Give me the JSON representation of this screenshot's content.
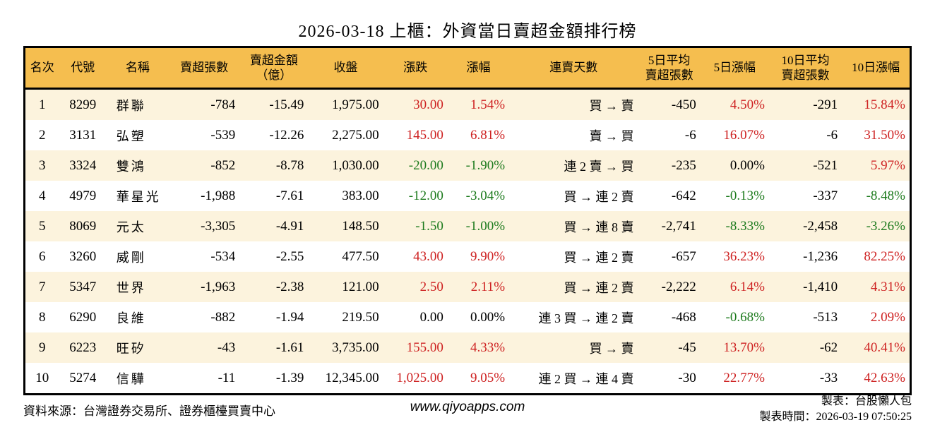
{
  "title": "2026-03-18 上櫃：外資當日賣超金額排行榜",
  "colors": {
    "header_bg": "#F5BE4F",
    "alt_row_bg": "#FCF3DD",
    "up_red": "#CE2222",
    "down_green": "#1E7B1E",
    "border": "#000000"
  },
  "table": {
    "headers": [
      "名次",
      "代號",
      "名稱",
      "賣超張數",
      "賣超金額\n（億）",
      "收盤",
      "漲跌",
      "漲幅",
      "連賣天數",
      "5日平均\n賣超張數",
      "5日漲幅",
      "10日平均\n賣超張數",
      "10日漲幅"
    ],
    "rows": [
      {
        "rank": "1",
        "code": "8299",
        "name": "群聯",
        "lots": "-784",
        "amount": "-15.49",
        "close": "1,975.00",
        "change": "30.00",
        "change_color": "red",
        "change_pct": "1.54%",
        "change_pct_color": "red",
        "streak": "買 → 賣",
        "avg5": "-450",
        "pct5": "4.50%",
        "pct5_color": "red",
        "avg10": "-291",
        "pct10": "15.84%",
        "pct10_color": "red"
      },
      {
        "rank": "2",
        "code": "3131",
        "name": "弘塑",
        "lots": "-539",
        "amount": "-12.26",
        "close": "2,275.00",
        "change": "145.00",
        "change_color": "red",
        "change_pct": "6.81%",
        "change_pct_color": "red",
        "streak": "賣 → 買",
        "avg5": "-6",
        "pct5": "16.07%",
        "pct5_color": "red",
        "avg10": "-6",
        "pct10": "31.50%",
        "pct10_color": "red"
      },
      {
        "rank": "3",
        "code": "3324",
        "name": "雙鴻",
        "lots": "-852",
        "amount": "-8.78",
        "close": "1,030.00",
        "change": "-20.00",
        "change_color": "green",
        "change_pct": "-1.90%",
        "change_pct_color": "green",
        "streak": "連 2 賣 → 買",
        "avg5": "-235",
        "pct5": "0.00%",
        "pct5_color": "black",
        "avg10": "-521",
        "pct10": "5.97%",
        "pct10_color": "red"
      },
      {
        "rank": "4",
        "code": "4979",
        "name": "華星光",
        "lots": "-1,988",
        "amount": "-7.61",
        "close": "383.00",
        "change": "-12.00",
        "change_color": "green",
        "change_pct": "-3.04%",
        "change_pct_color": "green",
        "streak": "買 → 連 2 賣",
        "avg5": "-642",
        "pct5": "-0.13%",
        "pct5_color": "green",
        "avg10": "-337",
        "pct10": "-8.48%",
        "pct10_color": "green"
      },
      {
        "rank": "5",
        "code": "8069",
        "name": "元太",
        "lots": "-3,305",
        "amount": "-4.91",
        "close": "148.50",
        "change": "-1.50",
        "change_color": "green",
        "change_pct": "-1.00%",
        "change_pct_color": "green",
        "streak": "買 → 連 8 賣",
        "avg5": "-2,741",
        "pct5": "-8.33%",
        "pct5_color": "green",
        "avg10": "-2,458",
        "pct10": "-3.26%",
        "pct10_color": "green"
      },
      {
        "rank": "6",
        "code": "3260",
        "name": "威剛",
        "lots": "-534",
        "amount": "-2.55",
        "close": "477.50",
        "change": "43.00",
        "change_color": "red",
        "change_pct": "9.90%",
        "change_pct_color": "red",
        "streak": "買 → 連 2 賣",
        "avg5": "-657",
        "pct5": "36.23%",
        "pct5_color": "red",
        "avg10": "-1,236",
        "pct10": "82.25%",
        "pct10_color": "red"
      },
      {
        "rank": "7",
        "code": "5347",
        "name": "世界",
        "lots": "-1,963",
        "amount": "-2.38",
        "close": "121.00",
        "change": "2.50",
        "change_color": "red",
        "change_pct": "2.11%",
        "change_pct_color": "red",
        "streak": "買 → 連 2 賣",
        "avg5": "-2,222",
        "pct5": "6.14%",
        "pct5_color": "red",
        "avg10": "-1,410",
        "pct10": "4.31%",
        "pct10_color": "red"
      },
      {
        "rank": "8",
        "code": "6290",
        "name": "良維",
        "lots": "-882",
        "amount": "-1.94",
        "close": "219.50",
        "change": "0.00",
        "change_color": "black",
        "change_pct": "0.00%",
        "change_pct_color": "black",
        "streak": "連 3 買 → 連 2 賣",
        "avg5": "-468",
        "pct5": "-0.68%",
        "pct5_color": "green",
        "avg10": "-513",
        "pct10": "2.09%",
        "pct10_color": "red"
      },
      {
        "rank": "9",
        "code": "6223",
        "name": "旺矽",
        "lots": "-43",
        "amount": "-1.61",
        "close": "3,735.00",
        "change": "155.00",
        "change_color": "red",
        "change_pct": "4.33%",
        "change_pct_color": "red",
        "streak": "買 → 賣",
        "avg5": "-45",
        "pct5": "13.70%",
        "pct5_color": "red",
        "avg10": "-62",
        "pct10": "40.41%",
        "pct10_color": "red"
      },
      {
        "rank": "10",
        "code": "5274",
        "name": "信驊",
        "lots": "-11",
        "amount": "-1.39",
        "close": "12,345.00",
        "change": "1,025.00",
        "change_color": "red",
        "change_pct": "9.05%",
        "change_pct_color": "red",
        "streak": "連 2 買 → 連 4 賣",
        "avg5": "-30",
        "pct5": "22.77%",
        "pct5_color": "red",
        "avg10": "-33",
        "pct10": "42.63%",
        "pct10_color": "red"
      }
    ]
  },
  "footer": {
    "source": "資料來源：台灣證券交易所、證券櫃檯買賣中心",
    "site": "www.qiyoapps.com",
    "maker": "製表：台股懶人包",
    "made_time": "製表時間：2026-03-19 07:50:25"
  }
}
